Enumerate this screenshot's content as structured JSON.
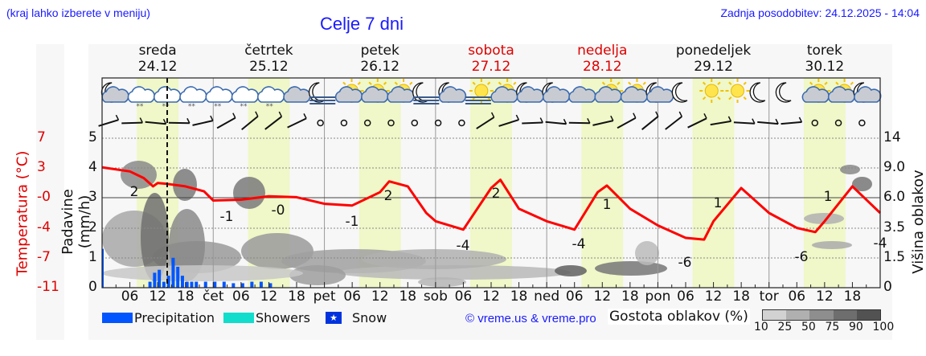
{
  "header": {
    "region_hint": "(kraj lahko izberete v meniju)",
    "title": "Celje 7 dni",
    "last_update": "Zadnja posodobitev: 24.12.2025 - 14:04"
  },
  "days": [
    {
      "name": "sreda",
      "date": "24.12",
      "weekend": false
    },
    {
      "name": "četrtek",
      "date": "25.12",
      "weekend": false
    },
    {
      "name": "petek",
      "date": "26.12",
      "weekend": false
    },
    {
      "name": "sobota",
      "date": "27.12",
      "weekend": true
    },
    {
      "name": "nedelja",
      "date": "28.12",
      "weekend": true
    },
    {
      "name": "ponedeljek",
      "date": "29.12",
      "weekend": false
    },
    {
      "name": "torek",
      "date": "30.12",
      "weekend": false
    }
  ],
  "axes": {
    "temperature_label": "Temperatura (°C)",
    "precip_label": "Padavine (mm/h)",
    "cloud_height_label": "Višina oblakov (km)",
    "temperature_ticks": [
      "7",
      "3",
      "-0",
      "-4",
      "-7",
      "-11"
    ],
    "precip_ticks": [
      "5",
      "4",
      "3",
      "2",
      "1",
      "0"
    ],
    "cloud_height_ticks": [
      "14",
      "9.0",
      "6.0",
      "3.5",
      "1.5",
      "0"
    ],
    "x_ticks": [
      "06",
      "12",
      "18",
      "čet",
      "06",
      "12",
      "18",
      "pet",
      "06",
      "12",
      "18",
      "sob",
      "06",
      "12",
      "18",
      "ned",
      "06",
      "12",
      "18",
      "pon",
      "06",
      "12",
      "18",
      "tor",
      "06",
      "12",
      "18"
    ]
  },
  "legend": {
    "precipitation": "Precipitation",
    "showers": "Showers",
    "snow": "Snow",
    "credit": "© vreme.us & vreme.pro",
    "cloud_density_label": "Gostota oblakov (%)",
    "cloud_density_ticks": [
      "10",
      "25",
      "50",
      "75",
      "90",
      "100"
    ],
    "colors": {
      "precipitation": "#0055ff",
      "showers": "#11ddcc",
      "snow": "#0033dd",
      "temperature": "#ff0000",
      "daylight": "#f0f7c8",
      "title_blue": "#1a1aff",
      "weekend_red": "#e00000"
    }
  },
  "icons": [
    "moon-cloud-icon",
    "cloud-snow-icon",
    "cloud-snow-icon",
    "cloud-snow-icon",
    "cloud-snow-icon",
    "cloud-snow-icon",
    "cloud-snow-icon",
    "cloud-icon",
    "moon-fog-icon",
    "sun-cloud-icon",
    "sun-cloud-icon",
    "sun-cloud-icon",
    "moon-fog-icon",
    "moon-cloud-icon",
    "sun-fog-icon",
    "sun-cloud-icon",
    "moon-cloud-icon",
    "moon-cloud-icon",
    "cloud-icon",
    "sun-cloud-icon",
    "sun-cloud-icon",
    "moon-cloud-icon",
    "moon-icon",
    "sun-icon",
    "sun-icon",
    "moon-icon",
    "moon-icon",
    "sun-cloud-icon",
    "sun-cloud-icon",
    "moon-cloud-icon"
  ],
  "chart_data": {
    "type": "line",
    "title": "Celje 7 dni",
    "xlabel": "",
    "ylabel": "Temperatura (°C)",
    "ylim_temperature": [
      -11,
      7
    ],
    "ylim_precipitation": [
      0,
      5
    ],
    "grid": true,
    "series": [
      {
        "name": "Temperatura",
        "unit": "°C",
        "x_hours": [
          0,
          6,
          9,
          11,
          12,
          14,
          18,
          22,
          24,
          30,
          36,
          42,
          48,
          54,
          60,
          62,
          66,
          70,
          72,
          78,
          84,
          86,
          90,
          96,
          102,
          107,
          109,
          114,
          120,
          126,
          130,
          132,
          138,
          144,
          150,
          154,
          156,
          162,
          168
        ],
        "values": [
          3.5,
          3.0,
          2.2,
          1.2,
          1.6,
          1.5,
          1.2,
          0.6,
          -0.5,
          -0.4,
          0.0,
          -0.1,
          -0.9,
          -1.1,
          0.5,
          1.8,
          1.2,
          -2.0,
          -3.0,
          -4.0,
          1.0,
          2.0,
          -1.5,
          -3.0,
          -4.0,
          0.5,
          1.3,
          -1.5,
          -3.5,
          -5.0,
          -5.2,
          -3.0,
          1.0,
          -2.0,
          -3.8,
          -4.3,
          -3.0,
          1.2,
          -2.0
        ]
      },
      {
        "name": "Precipitation",
        "unit": "mm/h",
        "x_hours": [
          10,
          11,
          12,
          13,
          14,
          15,
          16,
          17,
          18,
          19,
          20,
          22,
          24,
          26,
          28,
          30,
          32,
          34,
          36
        ],
        "values": [
          0.2,
          0.5,
          0.6,
          0.2,
          0.4,
          1.0,
          0.7,
          0.4,
          0.2,
          0.2,
          0.2,
          0.2,
          0.2,
          0.2,
          0.15,
          0.15,
          0.2,
          0.2,
          0.15
        ]
      }
    ],
    "temperature_labels": [
      {
        "day_hour": 8,
        "value": "2"
      },
      {
        "day_hour": 28,
        "value": "-1"
      },
      {
        "day_hour": 42,
        "value": "-0"
      },
      {
        "day_hour": 55,
        "value": "-1"
      },
      {
        "day_hour": 64,
        "value": "2"
      },
      {
        "day_hour": 83,
        "value": "-4"
      },
      {
        "day_hour": 86,
        "value": "2"
      },
      {
        "day_hour": 108,
        "value": "-4"
      },
      {
        "day_hour": 110,
        "value": "1"
      },
      {
        "day_hour": 127,
        "value": "-6"
      },
      {
        "day_hour": 134,
        "value": "1"
      },
      {
        "day_hour": 151,
        "value": "-6"
      },
      {
        "day_hour": 158,
        "value": "1"
      },
      {
        "day_hour": 168,
        "value": "-4"
      }
    ],
    "now_marker_hour": 14,
    "daylight_hours": [
      7.5,
      16.5
    ]
  }
}
